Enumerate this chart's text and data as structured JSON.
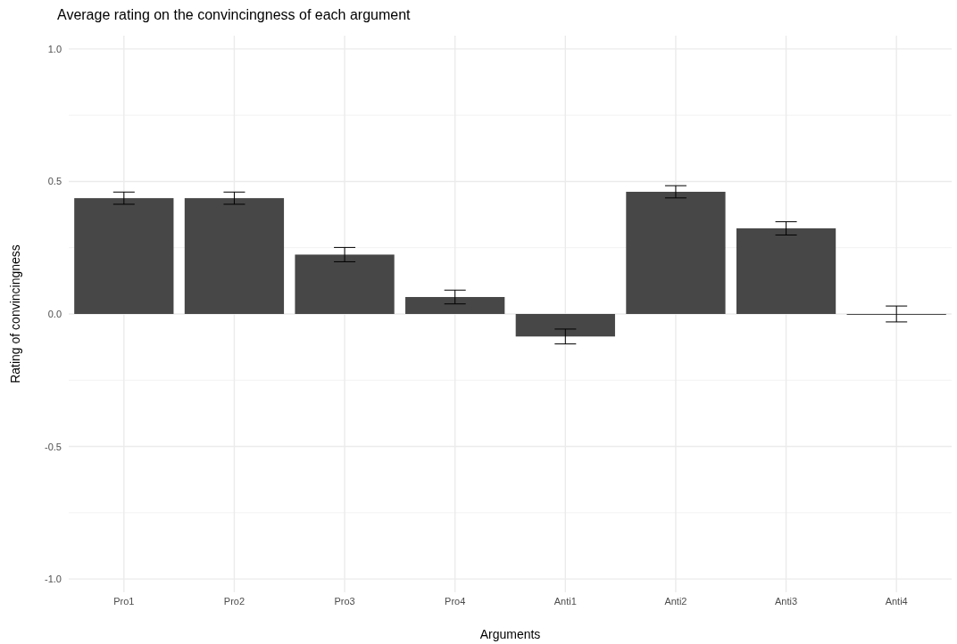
{
  "chart_data": {
    "type": "bar",
    "title": "Average rating on the convincingness of each argument",
    "xlabel": "Arguments",
    "ylabel": "Rating of convincingness",
    "categories": [
      "Pro1",
      "Pro2",
      "Pro3",
      "Pro4",
      "Anti1",
      "Anti2",
      "Anti3",
      "Anti4"
    ],
    "values": [
      0.437,
      0.437,
      0.224,
      0.064,
      -0.085,
      0.461,
      0.323,
      0
    ],
    "errors": [
      0.023,
      0.023,
      0.027,
      0.026,
      0.028,
      0.023,
      0.025,
      0.03
    ],
    "color": "#474747",
    "ylim": [
      -1.05,
      1.05
    ],
    "yticks": [
      {
        "value": -1,
        "label": "-1.0"
      },
      {
        "value": -0.75,
        "label": null
      },
      {
        "value": -0.5,
        "label": "-0.5"
      },
      {
        "value": -0.25,
        "label": null
      },
      {
        "value": 0,
        "label": "0.0"
      },
      {
        "value": 0.25,
        "label": null
      },
      {
        "value": 0.5,
        "label": "0.5"
      },
      {
        "value": 0.75,
        "label": null
      },
      {
        "value": 1,
        "label": "1.0"
      }
    ],
    "grid": true
  }
}
